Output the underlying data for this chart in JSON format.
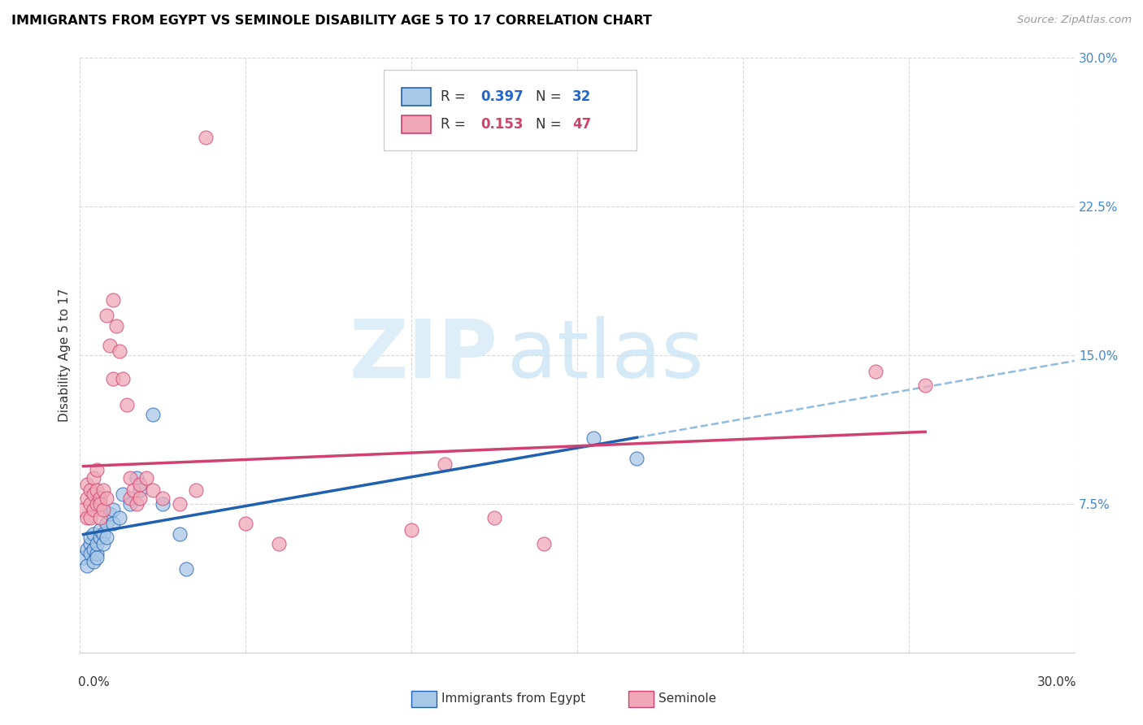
{
  "title": "IMMIGRANTS FROM EGYPT VS SEMINOLE DISABILITY AGE 5 TO 17 CORRELATION CHART",
  "source": "Source: ZipAtlas.com",
  "ylabel": "Disability Age 5 to 17",
  "xlim": [
    0.0,
    0.3
  ],
  "ylim": [
    0.0,
    0.3
  ],
  "right_yticks": [
    0.075,
    0.15,
    0.225,
    0.3
  ],
  "right_yticklabels": [
    "7.5%",
    "15.0%",
    "22.5%",
    "30.0%"
  ],
  "legend_r1": "0.397",
  "legend_n1": "32",
  "legend_r2": "0.153",
  "legend_n2": "47",
  "color_blue": "#a8c8e8",
  "color_pink": "#f0a8b8",
  "trendline_blue": "#2060b0",
  "trendline_pink": "#d04070",
  "trendline_dashed_color": "#90bce0",
  "blue_points": [
    [
      0.001,
      0.048
    ],
    [
      0.002,
      0.052
    ],
    [
      0.002,
      0.044
    ],
    [
      0.003,
      0.055
    ],
    [
      0.003,
      0.058
    ],
    [
      0.003,
      0.05
    ],
    [
      0.004,
      0.052
    ],
    [
      0.004,
      0.046
    ],
    [
      0.004,
      0.06
    ],
    [
      0.005,
      0.05
    ],
    [
      0.005,
      0.055
    ],
    [
      0.005,
      0.048
    ],
    [
      0.006,
      0.058
    ],
    [
      0.006,
      0.062
    ],
    [
      0.007,
      0.06
    ],
    [
      0.007,
      0.055
    ],
    [
      0.008,
      0.065
    ],
    [
      0.008,
      0.058
    ],
    [
      0.009,
      0.07
    ],
    [
      0.01,
      0.065
    ],
    [
      0.01,
      0.072
    ],
    [
      0.012,
      0.068
    ],
    [
      0.013,
      0.08
    ],
    [
      0.015,
      0.075
    ],
    [
      0.017,
      0.088
    ],
    [
      0.018,
      0.082
    ],
    [
      0.022,
      0.12
    ],
    [
      0.025,
      0.075
    ],
    [
      0.03,
      0.06
    ],
    [
      0.032,
      0.042
    ],
    [
      0.155,
      0.108
    ],
    [
      0.168,
      0.098
    ]
  ],
  "pink_points": [
    [
      0.001,
      0.072
    ],
    [
      0.002,
      0.068
    ],
    [
      0.002,
      0.078
    ],
    [
      0.002,
      0.085
    ],
    [
      0.003,
      0.075
    ],
    [
      0.003,
      0.082
    ],
    [
      0.003,
      0.068
    ],
    [
      0.004,
      0.08
    ],
    [
      0.004,
      0.072
    ],
    [
      0.004,
      0.088
    ],
    [
      0.005,
      0.075
    ],
    [
      0.005,
      0.082
    ],
    [
      0.005,
      0.092
    ],
    [
      0.006,
      0.078
    ],
    [
      0.006,
      0.068
    ],
    [
      0.006,
      0.075
    ],
    [
      0.007,
      0.082
    ],
    [
      0.007,
      0.072
    ],
    [
      0.008,
      0.078
    ],
    [
      0.008,
      0.17
    ],
    [
      0.009,
      0.155
    ],
    [
      0.01,
      0.138
    ],
    [
      0.01,
      0.178
    ],
    [
      0.011,
      0.165
    ],
    [
      0.012,
      0.152
    ],
    [
      0.013,
      0.138
    ],
    [
      0.014,
      0.125
    ],
    [
      0.015,
      0.088
    ],
    [
      0.015,
      0.078
    ],
    [
      0.016,
      0.082
    ],
    [
      0.017,
      0.075
    ],
    [
      0.018,
      0.085
    ],
    [
      0.018,
      0.078
    ],
    [
      0.02,
      0.088
    ],
    [
      0.022,
      0.082
    ],
    [
      0.025,
      0.078
    ],
    [
      0.03,
      0.075
    ],
    [
      0.035,
      0.082
    ],
    [
      0.038,
      0.26
    ],
    [
      0.05,
      0.065
    ],
    [
      0.06,
      0.055
    ],
    [
      0.1,
      0.062
    ],
    [
      0.11,
      0.095
    ],
    [
      0.125,
      0.068
    ],
    [
      0.14,
      0.055
    ],
    [
      0.24,
      0.142
    ],
    [
      0.255,
      0.135
    ]
  ],
  "blue_trend_x": [
    0.001,
    0.168
  ],
  "blue_trend_y_start": 0.042,
  "blue_trend_y_end": 0.13,
  "pink_trend_x": [
    0.001,
    0.255
  ],
  "pink_trend_y_start": 0.088,
  "pink_trend_y_end": 0.132,
  "dashed_line_x": [
    0.168,
    0.3
  ],
  "dashed_line_y_start": 0.13,
  "dashed_line_y_end": 0.168
}
